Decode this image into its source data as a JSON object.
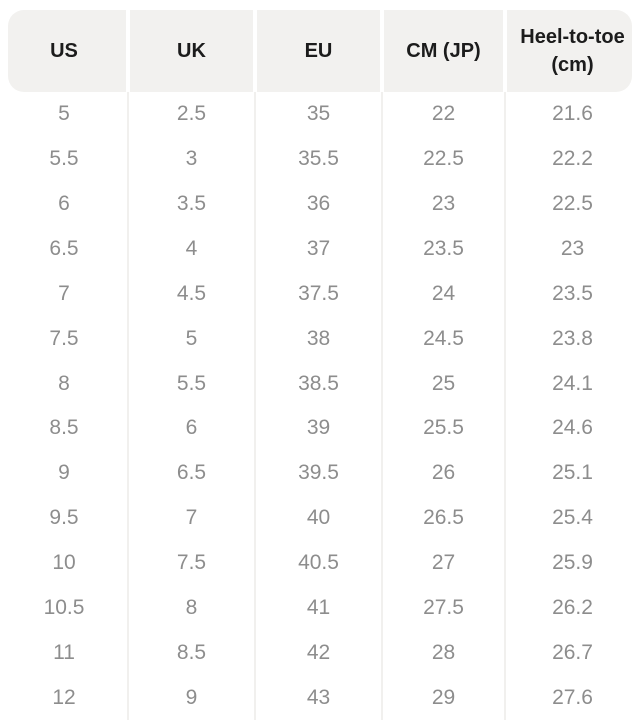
{
  "chart_data": {
    "type": "table",
    "columns": [
      "US",
      "UK",
      "EU",
      "CM (JP)",
      "Heel-to-toe (cm)"
    ],
    "rows": [
      [
        "5",
        "2.5",
        "35",
        "22",
        "21.6"
      ],
      [
        "5.5",
        "3",
        "35.5",
        "22.5",
        "22.2"
      ],
      [
        "6",
        "3.5",
        "36",
        "23",
        "22.5"
      ],
      [
        "6.5",
        "4",
        "37",
        "23.5",
        "23"
      ],
      [
        "7",
        "4.5",
        "37.5",
        "24",
        "23.5"
      ],
      [
        "7.5",
        "5",
        "38",
        "24.5",
        "23.8"
      ],
      [
        "8",
        "5.5",
        "38.5",
        "25",
        "24.1"
      ],
      [
        "8.5",
        "6",
        "39",
        "25.5",
        "24.6"
      ],
      [
        "9",
        "6.5",
        "39.5",
        "26",
        "25.1"
      ],
      [
        "9.5",
        "7",
        "40",
        "26.5",
        "25.4"
      ],
      [
        "10",
        "7.5",
        "40.5",
        "27",
        "25.9"
      ],
      [
        "10.5",
        "8",
        "41",
        "27.5",
        "26.2"
      ],
      [
        "11",
        "8.5",
        "42",
        "28",
        "26.7"
      ],
      [
        "12",
        "9",
        "43",
        "29",
        "27.6"
      ]
    ],
    "legend_position": "none",
    "grid": "vertical-dividers-only"
  },
  "colors": {
    "background": "#ffffff",
    "header_bg": "#f2f1ef",
    "header_text": "#1c1c1c",
    "body_text": "#8d8d8d",
    "divider": "#f1f0ee"
  }
}
